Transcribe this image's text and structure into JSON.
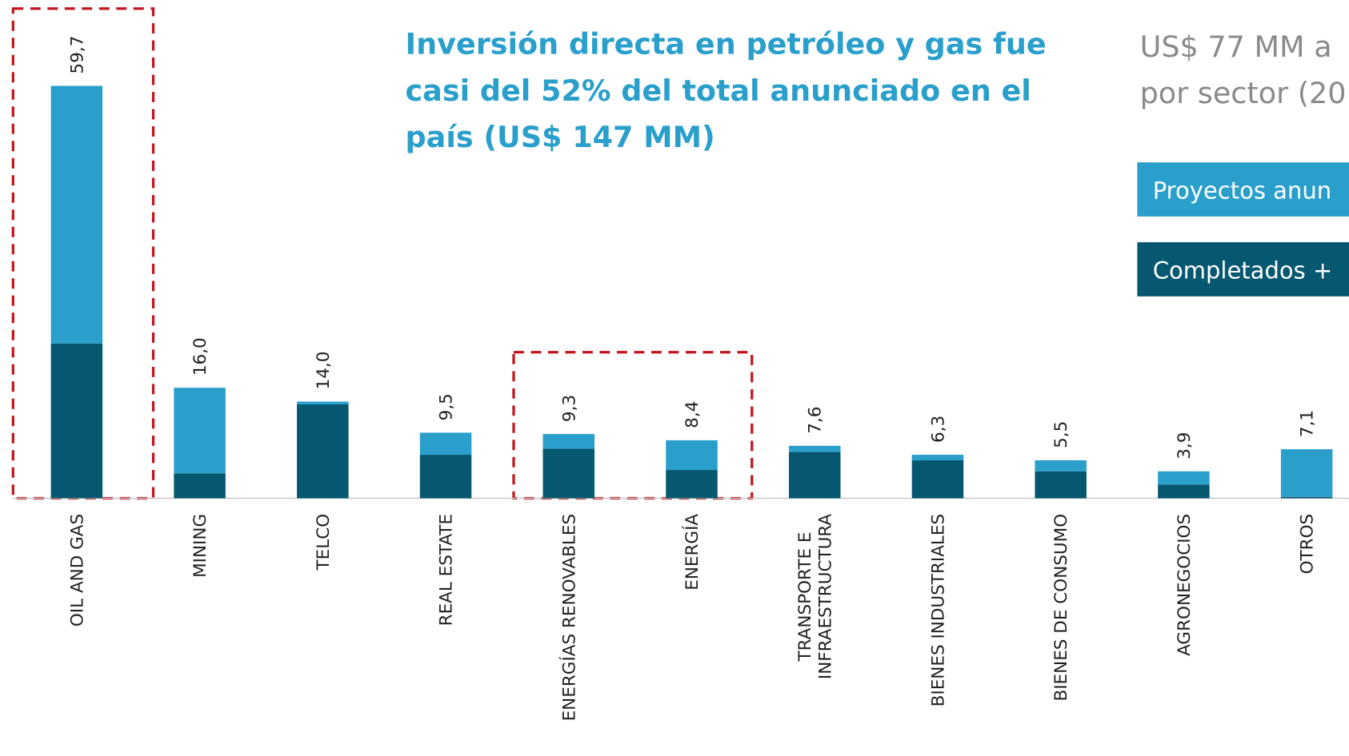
{
  "chart_data": {
    "type": "stacked_bar",
    "title_lines": [
      "Inversión directa en petróleo y gas fue",
      "casi del 52% del total anunciado en el",
      "país (US$ 147 MM)"
    ],
    "side_title_lines": [
      "US$ 77 MM a",
      "por sector (20"
    ],
    "categories": [
      "OIL AND GAS",
      "MINING",
      "TELCO",
      "REAL ESTATE",
      "ENERGÍAS RENOVABLES",
      "ENERGÍA",
      "TRANSPORTE E\nINFRAESTRUCTURA",
      "BIENES INDUSTRIALES",
      "BIENES DE CONSUMO",
      "AGRONEGOCIOS",
      "OTROS"
    ],
    "series": [
      {
        "name": "Completados +",
        "color": "#065870",
        "values": [
          22.4,
          3.6,
          13.6,
          6.3,
          7.2,
          4.1,
          6.7,
          5.5,
          3.9,
          2.0,
          0.2
        ]
      },
      {
        "name": "Proyectos anun",
        "color": "#2a9fcc",
        "values": [
          37.3,
          12.4,
          0.4,
          3.2,
          2.1,
          4.3,
          0.9,
          0.8,
          1.6,
          1.9,
          6.9
        ]
      }
    ],
    "totals": [
      59.7,
      16.0,
      14.0,
      9.5,
      9.3,
      8.4,
      7.6,
      6.3,
      5.5,
      3.9,
      7.1
    ],
    "total_labels": [
      "59,7",
      "16,0",
      "14,0",
      "9,5",
      "9,3",
      "8,4",
      "7,6",
      "6,3",
      "5,5",
      "3,9",
      "7,1"
    ]
  }
}
